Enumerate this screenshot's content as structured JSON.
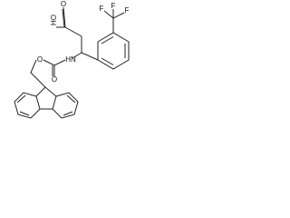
{
  "atoms": {
    "hydroxyl": "HO",
    "acid_oxygen": "O",
    "amine": "HN",
    "ester_oxygen": "O",
    "carbonyl_oxygen": "O",
    "fluorine_1": "F",
    "fluorine_2": "F",
    "fluorine_3": "F"
  }
}
